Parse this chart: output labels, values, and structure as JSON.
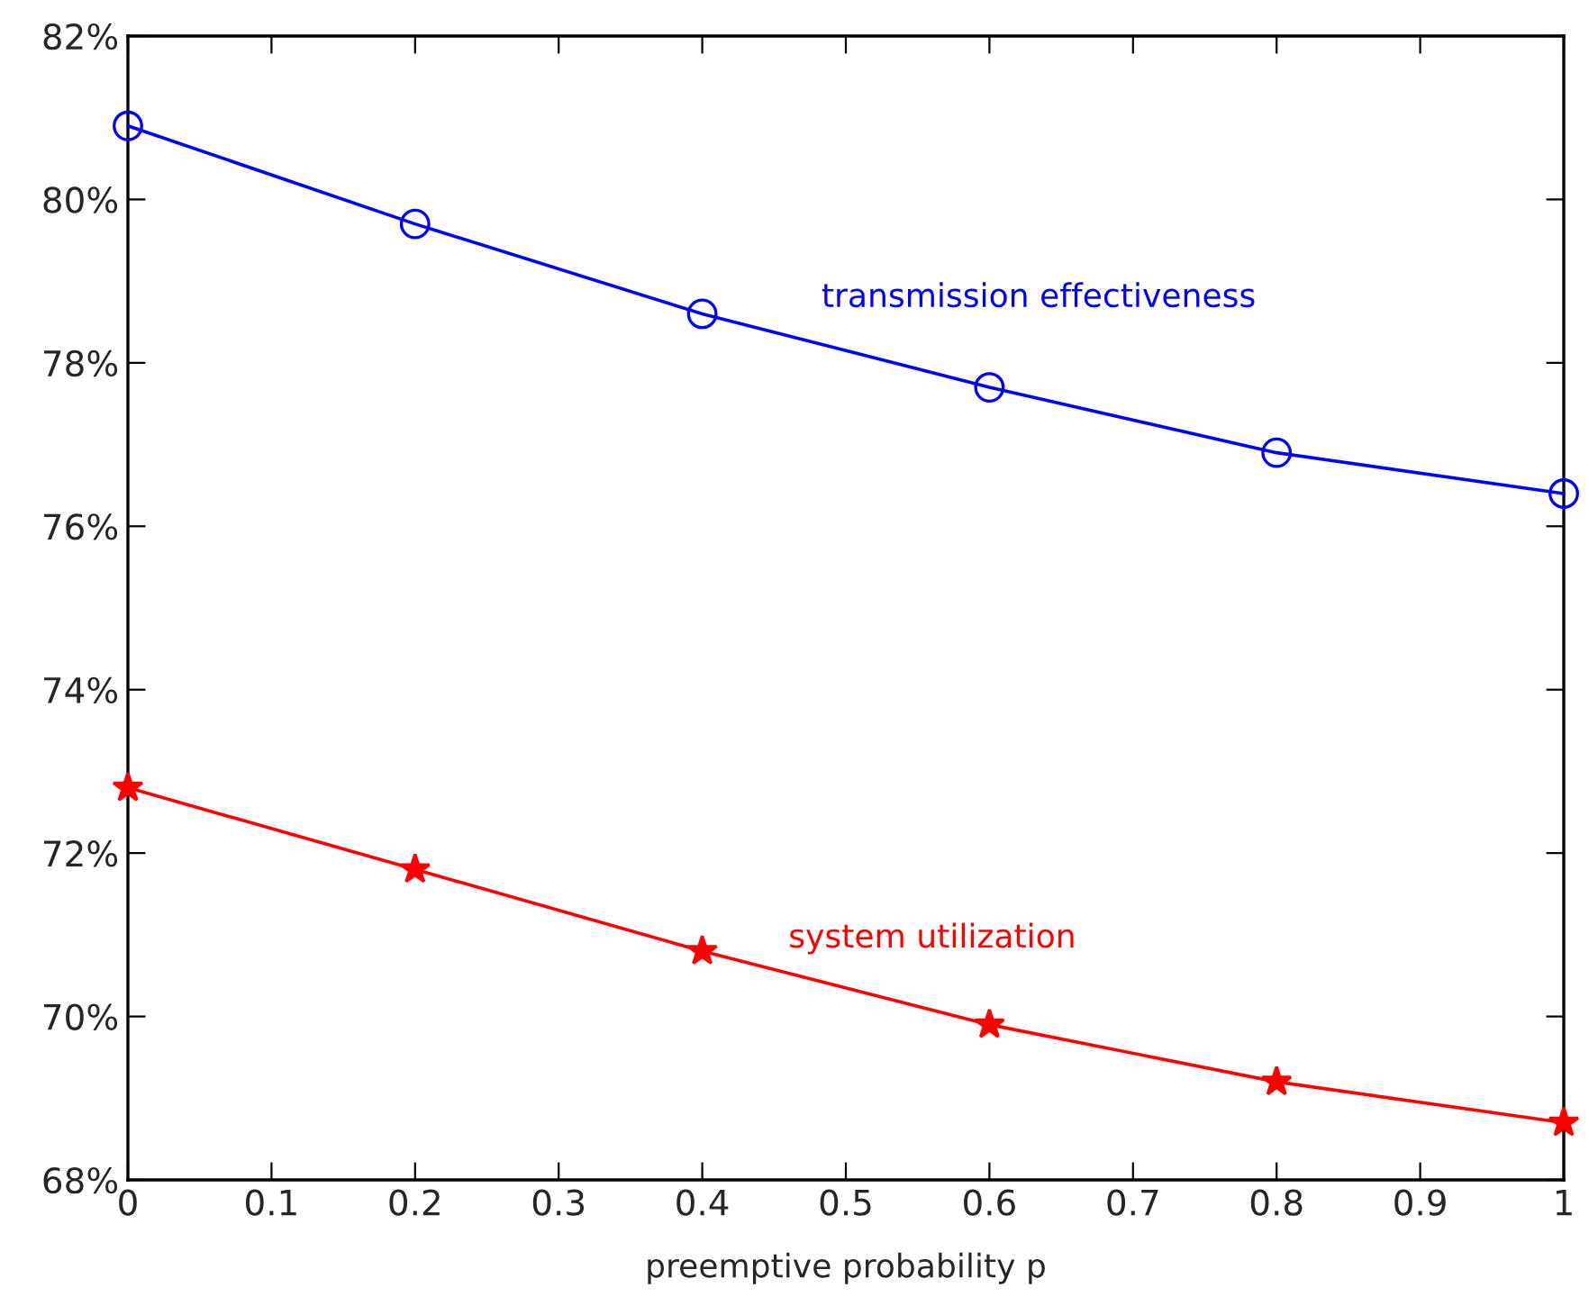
{
  "chart_data": {
    "type": "line",
    "xlabel": "preemptive probability p",
    "x": [
      0,
      0.2,
      0.4,
      0.6,
      0.8,
      1
    ],
    "series": [
      {
        "name": "transmission effectiveness",
        "color": "#0000ff",
        "marker": "circle",
        "values": [
          80.9,
          79.7,
          78.6,
          77.7,
          76.9,
          76.4
        ]
      },
      {
        "name": "system utilization",
        "color": "#ff0000",
        "marker": "star",
        "values": [
          72.8,
          71.8,
          70.8,
          69.9,
          69.2,
          68.7
        ]
      }
    ],
    "xlim": [
      0,
      1
    ],
    "xticks": [
      0,
      0.1,
      0.2,
      0.3,
      0.4,
      0.5,
      0.6,
      0.7,
      0.8,
      0.9,
      1
    ],
    "ylim": [
      68,
      82
    ],
    "yticks": [
      {
        "value": 68,
        "label": "68%"
      },
      {
        "value": 70,
        "label": "70%"
      },
      {
        "value": 72,
        "label": "72%"
      },
      {
        "value": 74,
        "label": "74%"
      },
      {
        "value": 76,
        "label": "76%"
      },
      {
        "value": 78,
        "label": "78%"
      },
      {
        "value": 80,
        "label": "80%"
      },
      {
        "value": 82,
        "label": "82%"
      }
    ],
    "grid": false,
    "legend": false,
    "line_style": "solid"
  }
}
